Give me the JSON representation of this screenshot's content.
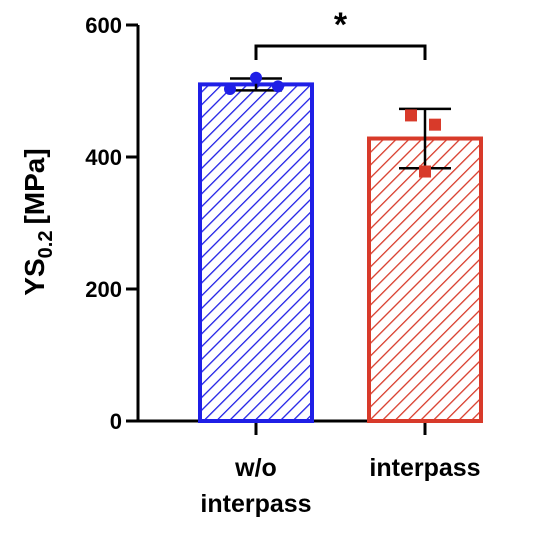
{
  "chart_data": {
    "type": "bar",
    "categories": [
      [
        "w/o",
        "interpass"
      ],
      [
        "interpass"
      ]
    ],
    "ylabel": "YS",
    "ylabel_subscript": "0.2",
    "ylabel_unit": "[MPa]",
    "ylim": [
      0,
      600
    ],
    "yticks": [
      0,
      200,
      400,
      600
    ],
    "grid": false,
    "series": [
      {
        "values": [
          510,
          428
        ],
        "errors": [
          9,
          45
        ],
        "colors": [
          "#1f1fe6",
          "#d83a2a"
        ],
        "fill": "diagonal-hatch"
      }
    ],
    "points": [
      [
        520,
        503,
        507
      ],
      [
        463,
        449,
        378
      ]
    ],
    "point_markers": [
      "circle",
      "square"
    ],
    "significance": {
      "between": [
        0,
        1
      ],
      "label": "*"
    }
  }
}
